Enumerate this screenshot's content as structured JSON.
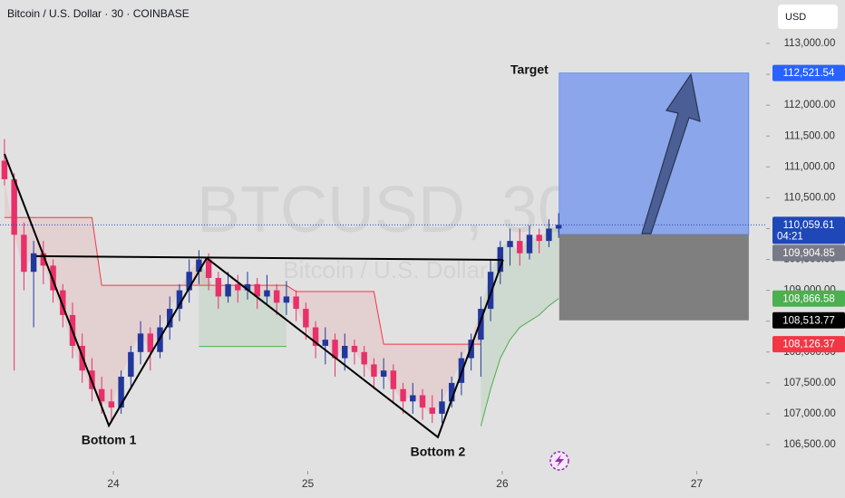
{
  "chart_data": {
    "type": "candlestick",
    "title": "Bitcoin / U.S. Dollar · 30 · COINBASE",
    "watermark": "BTCUSD, 30",
    "watermark_subtitle": "Bitcoin / U.S. Dollar",
    "currency": "USD",
    "up_color": "#22379c",
    "down_color": "#e8306a",
    "xlim": [
      23.417,
      27.357
    ],
    "xticks": [
      24,
      25,
      26,
      27
    ],
    "ylim": [
      106075,
      113704
    ],
    "yticks": [
      {
        "value": 106500,
        "label": "106,500.00"
      },
      {
        "value": 107000,
        "label": "107,000.00"
      },
      {
        "value": 107500,
        "label": "107,500.00"
      },
      {
        "value": 108000,
        "label": "108,000.00"
      },
      {
        "value": 108500,
        "label": "108,500.00"
      },
      {
        "value": 109000,
        "label": "109,000.00"
      },
      {
        "value": 109500,
        "label": "109,500.00"
      },
      {
        "value": 110000,
        "label": "110,000.00"
      },
      {
        "value": 110500,
        "label": "110,500.00"
      },
      {
        "value": 111000,
        "label": "111,000.00"
      },
      {
        "value": 111500,
        "label": "111,500.00"
      },
      {
        "value": 112000,
        "label": "112,000.00"
      },
      {
        "value": 112500,
        "label": "112,500.00"
      },
      {
        "value": 113000,
        "label": "113,000.00"
      }
    ],
    "x": [
      23.44,
      23.49,
      23.54,
      23.59,
      23.64,
      23.69,
      23.74,
      23.79,
      23.84,
      23.89,
      23.94,
      23.99,
      24.04,
      24.09,
      24.14,
      24.19,
      24.24,
      24.29,
      24.34,
      24.39,
      24.44,
      24.49,
      24.54,
      24.59,
      24.64,
      24.69,
      24.74,
      24.79,
      24.84,
      24.89,
      24.94,
      24.99,
      25.04,
      25.09,
      25.14,
      25.19,
      25.24,
      25.29,
      25.34,
      25.39,
      25.44,
      25.49,
      25.54,
      25.59,
      25.64,
      25.69,
      25.74,
      25.79,
      25.84,
      25.89,
      25.94,
      25.99,
      26.04,
      26.09,
      26.14,
      26.19,
      26.24,
      26.29
    ],
    "open": [
      111100,
      110800,
      109900,
      109300,
      109600,
      109400,
      109000,
      108600,
      108100,
      107700,
      107400,
      107200,
      107100,
      107600,
      108000,
      108300,
      108000,
      108400,
      108700,
      109000,
      109300,
      109500,
      109200,
      108900,
      109100,
      109000,
      109100,
      108900,
      109000,
      108800,
      108900,
      108700,
      108400,
      108100,
      108200,
      107900,
      108100,
      108000,
      107800,
      107600,
      107700,
      107400,
      107200,
      107300,
      107100,
      107000,
      107200,
      107500,
      107900,
      108200,
      108700,
      109300,
      109700,
      109800,
      109600,
      109900,
      109800,
      110000
    ],
    "high": [
      111450,
      110900,
      110100,
      109800,
      109800,
      109500,
      109100,
      108800,
      108300,
      107900,
      107600,
      107400,
      107700,
      108100,
      108500,
      108400,
      108600,
      108900,
      109100,
      109500,
      109650,
      109600,
      109300,
      109300,
      109250,
      109300,
      109200,
      109250,
      109100,
      109150,
      109000,
      108800,
      108500,
      108400,
      108300,
      108300,
      108200,
      108100,
      107900,
      107900,
      107800,
      107500,
      107500,
      107400,
      107300,
      107400,
      107600,
      108000,
      108300,
      108900,
      109500,
      109800,
      110000,
      110000,
      110050,
      110000,
      110150,
      110250
    ],
    "low": [
      110700,
      107700,
      109000,
      108400,
      109100,
      108800,
      108400,
      107900,
      107500,
      107200,
      107000,
      106850,
      107000,
      107400,
      107800,
      107700,
      107900,
      108200,
      108500,
      108800,
      109100,
      109000,
      108700,
      108800,
      108800,
      108850,
      108700,
      108750,
      108600,
      108600,
      108500,
      108200,
      107900,
      107800,
      107600,
      107700,
      107800,
      107600,
      107400,
      107400,
      107200,
      107000,
      107000,
      106900,
      106850,
      106850,
      107100,
      107300,
      107700,
      107600,
      108500,
      109100,
      109400,
      109400,
      109500,
      109600,
      109700,
      109850
    ],
    "close": [
      110800,
      109900,
      109300,
      109600,
      109400,
      109000,
      108600,
      108100,
      107700,
      107400,
      107200,
      107100,
      107600,
      108000,
      108300,
      108000,
      108400,
      108700,
      109000,
      109300,
      109500,
      109200,
      108900,
      109100,
      109000,
      109100,
      108900,
      109000,
      108800,
      108900,
      108700,
      108400,
      108100,
      108200,
      107900,
      108100,
      108000,
      107800,
      107600,
      107700,
      107400,
      107200,
      107300,
      107100,
      107000,
      107200,
      107500,
      107900,
      108200,
      108700,
      109300,
      109700,
      109800,
      109600,
      109900,
      109800,
      110000,
      110059.61
    ],
    "bands": [
      {
        "color": "#f23645",
        "fill": "rgba(242,54,69,0.10)",
        "values": [
          110180,
          110180,
          110180,
          110180,
          110180,
          110180,
          110180,
          110180,
          110180,
          110180,
          109080,
          109080,
          109080,
          109080,
          109080,
          109080,
          109080,
          109080,
          109080,
          109080,
          109080,
          109080,
          109080,
          109080,
          109080,
          109080,
          109080,
          109080,
          109080,
          109080,
          108980,
          108980,
          108980,
          108980,
          108980,
          108980,
          108980,
          108980,
          108980,
          108126.37,
          108126.37,
          108126.37,
          108126.37,
          108126.37,
          108126.37,
          108126.37,
          108126.37,
          108126.37,
          108126.37,
          108126.37,
          null,
          null,
          null,
          null,
          null,
          null,
          null,
          null
        ]
      },
      {
        "color": "#4caf50",
        "fill": "rgba(76,175,80,0.12)",
        "values": [
          null,
          null,
          null,
          null,
          null,
          null,
          null,
          null,
          null,
          null,
          null,
          null,
          null,
          null,
          null,
          null,
          null,
          null,
          null,
          null,
          108090,
          108090,
          108090,
          108090,
          108090,
          108090,
          108090,
          108090,
          108090,
          108090,
          null,
          null,
          null,
          null,
          null,
          null,
          null,
          null,
          null,
          null,
          null,
          null,
          null,
          null,
          null,
          null,
          null,
          null,
          null,
          106800,
          107400,
          107900,
          108200,
          108400,
          108500,
          108600,
          108750,
          108866.58
        ]
      }
    ],
    "drawings": [
      {
        "color": "#000000",
        "x": [
          23.44,
          23.977,
          24.48,
          25.669,
          26.004
        ],
        "y": [
          111210,
          106808,
          109523,
          106620,
          109494
        ]
      },
      {
        "color": "#000000",
        "x": [
          23.603,
          26.004
        ],
        "y": [
          109553,
          109494
        ]
      }
    ],
    "bottom_labels": [
      "Bottom 1",
      "Bottom 2"
    ],
    "position": {
      "label": "Target",
      "x": [
        26.293,
        27.268
      ],
      "target": 112521.54,
      "entry": 109904.85,
      "stop": 108513.77,
      "profit_color": "#8ba6ea",
      "loss_color": "#7f7f7f"
    },
    "countdown": "04:21",
    "price_labels": [
      {
        "value": 112521.54,
        "label": "112,521.54",
        "color": "#2962ff"
      },
      {
        "value": 110059.61,
        "label": "110,059.61",
        "color": "#1f47b8"
      },
      {
        "value": 109904.85,
        "label": "109,904.85",
        "color": "#787b86"
      },
      {
        "value": 108866.58,
        "label": "108,866.58",
        "color": "#4caf50"
      },
      {
        "value": 108513.77,
        "label": "108,513.77",
        "color": "#000000"
      },
      {
        "value": 108126.37,
        "label": "108,126.37",
        "color": "#f23645"
      }
    ]
  }
}
